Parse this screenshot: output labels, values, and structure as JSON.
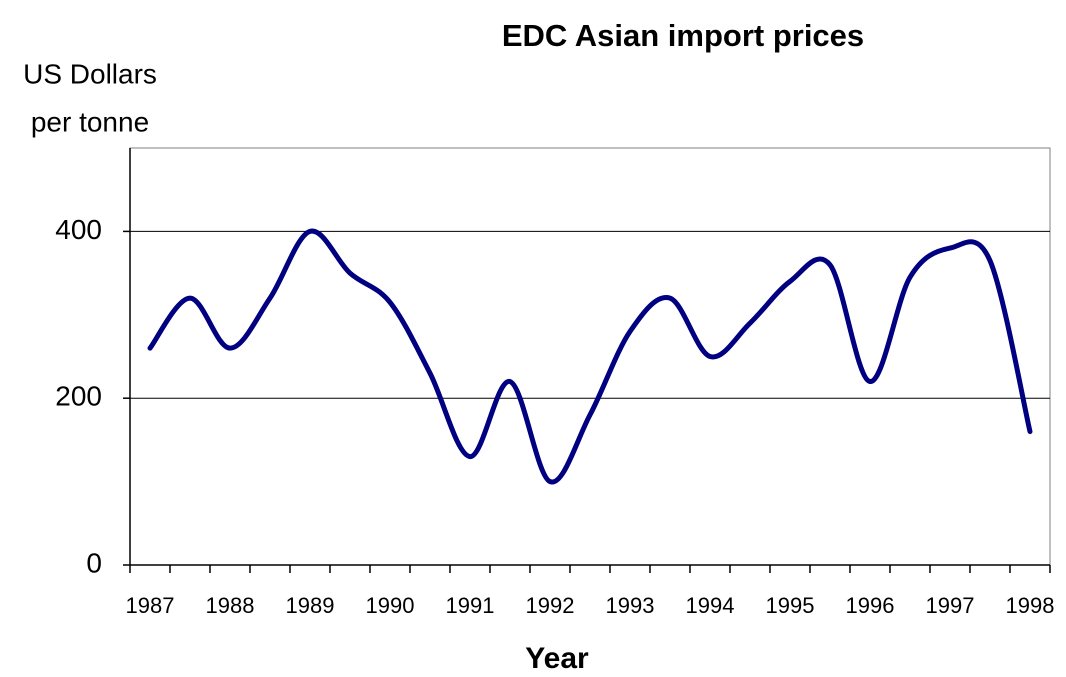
{
  "chart_data": {
    "type": "line",
    "title": "EDC Asian import prices",
    "ylabel": [
      "US Dollars",
      "per tonne"
    ],
    "xlabel": "Year",
    "series": [
      {
        "name": "EDC Asian import prices",
        "color": "#000080",
        "x": [
          1987,
          1987.5,
          1988,
          1988.5,
          1989,
          1989.5,
          1990,
          1990.5,
          1991,
          1991.5,
          1992,
          1992.5,
          1993,
          1993.5,
          1994,
          1994.5,
          1995,
          1995.5,
          1996,
          1996.5,
          1997,
          1997.5,
          1998
        ],
        "values": [
          260,
          320,
          260,
          320,
          400,
          350,
          315,
          230,
          130,
          220,
          100,
          180,
          280,
          320,
          250,
          290,
          340,
          360,
          220,
          345,
          380,
          365,
          160
        ]
      }
    ],
    "xlim": [
      1986.75,
      1998.25
    ],
    "xticks": [
      1987,
      1988,
      1989,
      1990,
      1991,
      1992,
      1993,
      1994,
      1995,
      1996,
      1997,
      1998
    ],
    "ylim": [
      0,
      500
    ],
    "yticks": [
      0,
      200,
      400
    ],
    "grid": true
  }
}
